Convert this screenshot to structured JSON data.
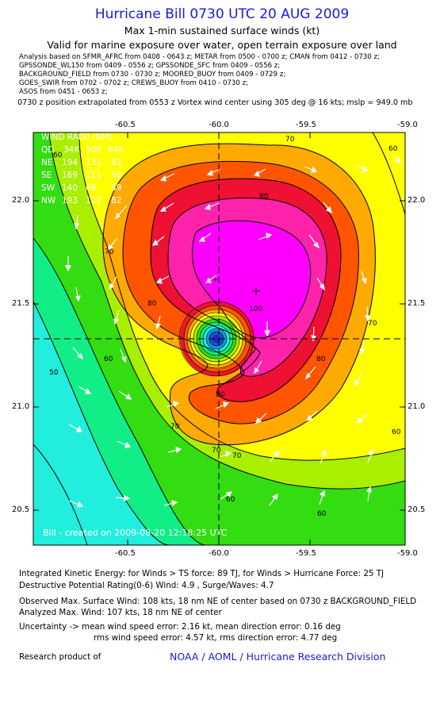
{
  "header": {
    "title": "Hurricane Bill 0730 UTC 20 AUG 2009",
    "subtitle": "Max 1-min sustained surface winds (kt)",
    "validity": "Valid for marine exposure over water, open terrain exposure over land"
  },
  "analysis_sources": [
    "Analysis based on   SFMR_AFRC from 0408 - 0643 z;  METAR from 0500 - 0700 z;  CMAN from 0412 - 0730 z;",
    "GPSSONDE_WL150 from 0409 - 0556 z;  GPSSONDE_SFC from 0409 - 0556 z;",
    "BACKGROUND_FIELD from 0730 - 0730 z;  MOORED_BUOY from 0409 - 0729 z;",
    "GOES_SWIR from 0702 - 0702 z;  CREWS_BUOY from 0410 - 0730 z;",
    "ASOS from 0451 - 0653 z;"
  ],
  "position_note": "0730 z position extrapolated from 0553 z Vortex wind center using 305 deg @ 16 kts; mslp = 949.0 mb",
  "axes": {
    "lon_labels": [
      "-60.5",
      "-60.0",
      "-59.5",
      "-59.0"
    ],
    "lon_values": [
      -60.5,
      -60.0,
      -59.5,
      -59.0
    ],
    "lat_labels": [
      "22.0",
      "21.5",
      "21.0",
      "20.5"
    ],
    "lat_values": [
      22.0,
      21.5,
      21.0,
      20.5
    ],
    "lon_range": [
      -60.92,
      -59.0
    ],
    "lat_range": [
      20.33,
      22.33
    ]
  },
  "storm_center": {
    "lon": -60.0,
    "lat": 21.33
  },
  "max_wind_marker": {
    "lon": -59.83,
    "lat": 21.55
  },
  "wind_radii": {
    "title": "WIND RADII (NM)",
    "header": [
      "QD",
      "34K",
      "50K",
      "64K"
    ],
    "rows": [
      [
        "NE",
        "194",
        "131",
        "82"
      ],
      [
        "SE",
        "169",
        "111",
        "58"
      ],
      [
        "SW",
        "140",
        "68",
        "39"
      ],
      [
        "NW",
        "193",
        "127",
        "82"
      ]
    ]
  },
  "contour_labels": [
    "70",
    "80",
    "60",
    "70",
    "80",
    "100",
    "70",
    "80",
    "70",
    "70",
    "60",
    "60",
    "60",
    "50",
    "60",
    "80",
    "70",
    "60"
  ],
  "wind_color_bands": [
    {
      "min_kt": 0,
      "color": "#22eedd"
    },
    {
      "min_kt": 40,
      "color": "#11ee88"
    },
    {
      "min_kt": 50,
      "color": "#33dd11"
    },
    {
      "min_kt": 60,
      "color": "#aaee00"
    },
    {
      "min_kt": 65,
      "color": "#ffff00"
    },
    {
      "min_kt": 70,
      "color": "#ffaa00"
    },
    {
      "min_kt": 80,
      "color": "#ff5500"
    },
    {
      "min_kt": 90,
      "color": "#ee1133"
    },
    {
      "min_kt": 95,
      "color": "#ff22aa"
    },
    {
      "min_kt": 100,
      "color": "#ff00ff"
    }
  ],
  "watermark": "Bill  - created  on  2009-08-20  12:18:25  UTC",
  "footer": {
    "ike": "Integrated Kinetic Energy:  for Winds > TS force: 89 TJ,  for Winds > Hurricane Force: 25 TJ",
    "dpr": "Destructive Potential Rating(0-6)   Wind: 4.9 , Surge/Waves: 4.7",
    "observed": "Observed Max. Surface Wind: 108 kts, 18 nm NE of center based on 0730 z BACKGROUND_FIELD",
    "analyzed": "Analyzed Max. Wind: 107 kts, 18 nm NE of center",
    "uncertainty": "Uncertainty -> mean wind speed error: 2.16 kt,   mean direction error: 0.16 deg",
    "rms": "rms wind speed error: 4.57 kt,   rms direction error: 4.77 deg",
    "research_label": "Research product of",
    "research_org": "NOAA / AOML / Hurricane Research Division"
  }
}
